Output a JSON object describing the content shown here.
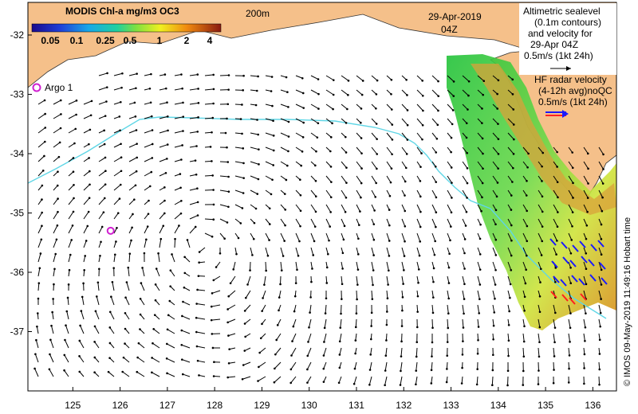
{
  "colorbar": {
    "title": "MODIS Chl-a mg/m3 OC3",
    "ticks": [
      "0.05",
      "0.1",
      "0.25",
      "0.5",
      "1",
      "2",
      "4"
    ]
  },
  "isobath_label": "200m",
  "date_label": "29-Apr-2019",
  "time_label": "04Z",
  "altimetry_legend": [
    "Altimetric sealevel",
    "(0.1m contours)",
    "and velocity for",
    "29-Apr 04Z",
    "0.5m/s (1kt 24h)"
  ],
  "hf_legend": [
    "HF radar velocity",
    "(4-12h avg)noQC",
    "0.5m/s (1kt 24h)"
  ],
  "argo_label": "Argo 1",
  "credit": "© IMOS 09-May-2019 11:49:16 Hobart time",
  "colors": {
    "land": "#f5c08a",
    "isobath": "#5fd6e6",
    "argo": "#d020d0",
    "hf_blue": "#1a1aff",
    "hf_red": "#ff2020"
  },
  "chart_data": {
    "type": "map",
    "x_axis": {
      "unit": "longitude",
      "ticks": [
        125,
        126,
        127,
        128,
        129,
        130,
        131,
        132,
        133,
        134,
        135,
        136
      ],
      "range": [
        124.05,
        136.5
      ]
    },
    "y_axis": {
      "unit": "latitude",
      "ticks": [
        -32,
        -33,
        -34,
        -35,
        -36,
        -37
      ],
      "range": [
        -38.0,
        -31.45
      ]
    },
    "argo_floats": [
      {
        "name": "Argo 1",
        "lon": 125.8,
        "lat": -35.3
      }
    ]
  }
}
